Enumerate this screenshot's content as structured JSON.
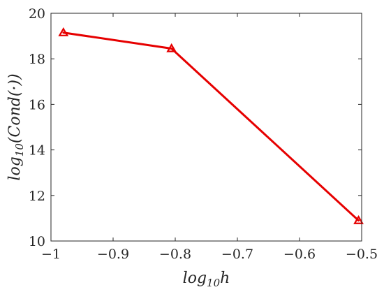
{
  "chart_data": {
    "type": "line",
    "title": "",
    "xlabel": "log10h",
    "ylabel": "log10(Cond(·))",
    "xlim": [
      -1,
      -0.5
    ],
    "ylim": [
      10,
      20
    ],
    "xticks": [
      -1,
      -0.9,
      -0.8,
      -0.7,
      -0.6,
      -0.5
    ],
    "xtick_labels": [
      "−1",
      "−0.9",
      "−0.8",
      "−0.7",
      "−0.6",
      "−0.5"
    ],
    "yticks": [
      10,
      12,
      14,
      16,
      18,
      20
    ],
    "ytick_labels": [
      "10",
      "12",
      "14",
      "16",
      "18",
      "20"
    ],
    "grid": false,
    "series": [
      {
        "color": "#e60000",
        "marker": "triangle",
        "x": [
          -0.98,
          -0.806,
          -0.505
        ],
        "y": [
          19.15,
          18.45,
          10.9
        ]
      }
    ]
  }
}
